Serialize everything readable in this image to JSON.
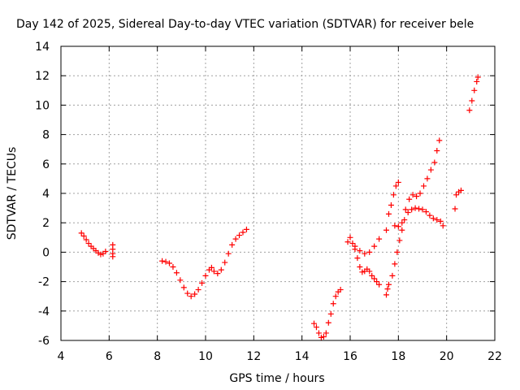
{
  "chart_data": {
    "type": "scatter",
    "title": "Day 142 of 2025, Sidereal Day-to-day VTEC variation (SDTVAR) for receiver bele",
    "xlabel": "GPS time / hours",
    "ylabel": "SDTVAR / TECUs",
    "xlim": [
      4,
      22
    ],
    "ylim": [
      -6,
      14
    ],
    "xticks": [
      "4",
      "6",
      "8",
      "10",
      "12",
      "14",
      "16",
      "18",
      "20",
      "22"
    ],
    "yticks": [
      "-6",
      "-4",
      "-2",
      "0",
      "2",
      "4",
      "6",
      "8",
      "10",
      "12",
      "14"
    ],
    "grid": true,
    "marker": "+",
    "color": "#ff0000",
    "series": [
      {
        "name": "SDTVAR",
        "points": [
          [
            4.85,
            1.3
          ],
          [
            4.95,
            1.1
          ],
          [
            5.05,
            0.85
          ],
          [
            5.15,
            0.6
          ],
          [
            5.25,
            0.4
          ],
          [
            5.35,
            0.25
          ],
          [
            5.45,
            0.1
          ],
          [
            5.55,
            -0.05
          ],
          [
            5.65,
            -0.15
          ],
          [
            5.75,
            -0.1
          ],
          [
            5.85,
            0.05
          ],
          [
            6.15,
            0.5
          ],
          [
            6.15,
            0.2
          ],
          [
            6.15,
            -0.1
          ],
          [
            6.15,
            -0.3
          ],
          [
            8.2,
            -0.6
          ],
          [
            8.35,
            -0.65
          ],
          [
            8.5,
            -0.75
          ],
          [
            8.65,
            -1.0
          ],
          [
            8.8,
            -1.4
          ],
          [
            8.95,
            -1.9
          ],
          [
            9.1,
            -2.4
          ],
          [
            9.25,
            -2.8
          ],
          [
            9.4,
            -3.0
          ],
          [
            9.55,
            -2.85
          ],
          [
            9.7,
            -2.55
          ],
          [
            9.85,
            -2.1
          ],
          [
            10.0,
            -1.6
          ],
          [
            10.15,
            -1.2
          ],
          [
            10.25,
            -1.05
          ],
          [
            10.35,
            -1.3
          ],
          [
            10.5,
            -1.45
          ],
          [
            10.65,
            -1.2
          ],
          [
            10.8,
            -0.7
          ],
          [
            10.95,
            -0.1
          ],
          [
            11.1,
            0.5
          ],
          [
            11.25,
            0.9
          ],
          [
            11.4,
            1.15
          ],
          [
            11.55,
            1.35
          ],
          [
            11.7,
            1.55
          ],
          [
            14.5,
            -4.85
          ],
          [
            14.6,
            -5.1
          ],
          [
            14.7,
            -5.5
          ],
          [
            14.8,
            -5.8
          ],
          [
            14.9,
            -5.75
          ],
          [
            15.0,
            -5.5
          ],
          [
            15.1,
            -4.8
          ],
          [
            15.2,
            -4.2
          ],
          [
            15.3,
            -3.5
          ],
          [
            15.4,
            -3.0
          ],
          [
            15.5,
            -2.7
          ],
          [
            15.6,
            -2.55
          ],
          [
            15.9,
            0.7
          ],
          [
            16.0,
            1.0
          ],
          [
            16.1,
            0.6
          ],
          [
            16.2,
            0.2
          ],
          [
            16.3,
            -0.4
          ],
          [
            16.4,
            -1.0
          ],
          [
            16.5,
            -1.35
          ],
          [
            16.6,
            -1.3
          ],
          [
            16.7,
            -1.15
          ],
          [
            16.8,
            -1.3
          ],
          [
            16.9,
            -1.6
          ],
          [
            17.0,
            -1.8
          ],
          [
            17.1,
            -2.0
          ],
          [
            17.2,
            -2.2
          ],
          [
            16.2,
            0.4
          ],
          [
            16.4,
            0.1
          ],
          [
            16.6,
            -0.1
          ],
          [
            16.8,
            0.0
          ],
          [
            17.0,
            0.4
          ],
          [
            17.2,
            0.9
          ],
          [
            17.5,
            -2.9
          ],
          [
            17.55,
            -2.5
          ],
          [
            17.6,
            -2.2
          ],
          [
            17.5,
            1.5
          ],
          [
            17.6,
            2.6
          ],
          [
            17.7,
            3.2
          ],
          [
            17.8,
            3.9
          ],
          [
            17.9,
            4.5
          ],
          [
            18.0,
            4.75
          ],
          [
            17.75,
            -1.6
          ],
          [
            17.85,
            -0.8
          ],
          [
            17.95,
            0.0
          ],
          [
            18.05,
            0.8
          ],
          [
            18.15,
            1.5
          ],
          [
            18.25,
            2.2
          ],
          [
            18.4,
            2.7
          ],
          [
            18.55,
            2.9
          ],
          [
            18.7,
            3.0
          ],
          [
            18.85,
            2.95
          ],
          [
            19.0,
            2.9
          ],
          [
            19.15,
            2.75
          ],
          [
            19.3,
            2.5
          ],
          [
            19.45,
            2.3
          ],
          [
            19.6,
            2.2
          ],
          [
            19.75,
            2.1
          ],
          [
            19.85,
            1.8
          ],
          [
            17.85,
            1.8
          ],
          [
            18.0,
            1.75
          ],
          [
            18.15,
            2.0
          ],
          [
            18.3,
            2.9
          ],
          [
            18.45,
            3.6
          ],
          [
            18.6,
            3.9
          ],
          [
            18.75,
            3.8
          ],
          [
            18.9,
            4.0
          ],
          [
            19.05,
            4.5
          ],
          [
            19.2,
            5.0
          ],
          [
            19.35,
            5.6
          ],
          [
            19.5,
            6.1
          ],
          [
            19.6,
            6.9
          ],
          [
            19.7,
            7.6
          ],
          [
            20.35,
            2.95
          ],
          [
            20.4,
            3.9
          ],
          [
            20.5,
            4.1
          ],
          [
            20.6,
            4.2
          ],
          [
            20.95,
            9.65
          ],
          [
            21.05,
            10.3
          ],
          [
            21.15,
            11.0
          ],
          [
            21.25,
            11.6
          ],
          [
            21.3,
            11.9
          ]
        ]
      }
    ]
  }
}
